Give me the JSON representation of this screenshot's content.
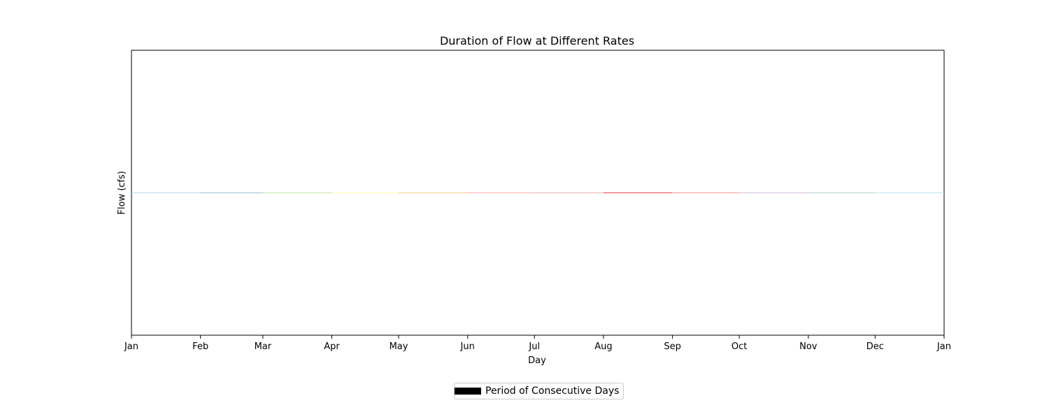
{
  "chart_data": {
    "type": "area",
    "title": "Duration of Flow at Different Rates",
    "xlabel": "Day",
    "ylabel": "Flow (cfs)",
    "x_tick_labels": [
      "Jan",
      "Feb",
      "Mar",
      "Apr",
      "May",
      "Jun",
      "Jul",
      "Aug",
      "Sep",
      "Oct",
      "Nov",
      "Dec",
      "Jan"
    ],
    "y_tick_labels": [],
    "grid": false,
    "legend": {
      "position": "bottom-center",
      "entries": [
        {
          "label": "Period of Consecutive Days",
          "color": "#000000"
        }
      ]
    },
    "series": [
      {
        "month": "Jan",
        "color": "#a6cee3",
        "value": 0
      },
      {
        "month": "Feb",
        "color": "#7fb3c8",
        "value": 0
      },
      {
        "month": "Mar",
        "color": "#b2df8a",
        "value": 0
      },
      {
        "month": "Apr",
        "color": "#ffff99",
        "value": 0
      },
      {
        "month": "May",
        "color": "#fdbf6f",
        "value": 0
      },
      {
        "month": "Jun",
        "color": "#fb9a99",
        "value": 0
      },
      {
        "month": "Jul",
        "color": "#e6a0a0",
        "value": 0
      },
      {
        "month": "Aug",
        "color": "#e31a1c",
        "value": 0
      },
      {
        "month": "Sep",
        "color": "#f08080",
        "value": 0
      },
      {
        "month": "Oct",
        "color": "#cab2d6",
        "value": 0
      },
      {
        "month": "Nov",
        "color": "#a8c8c8",
        "value": 0
      },
      {
        "month": "Dec",
        "color": "#a6e0e8",
        "value": 0
      }
    ]
  }
}
